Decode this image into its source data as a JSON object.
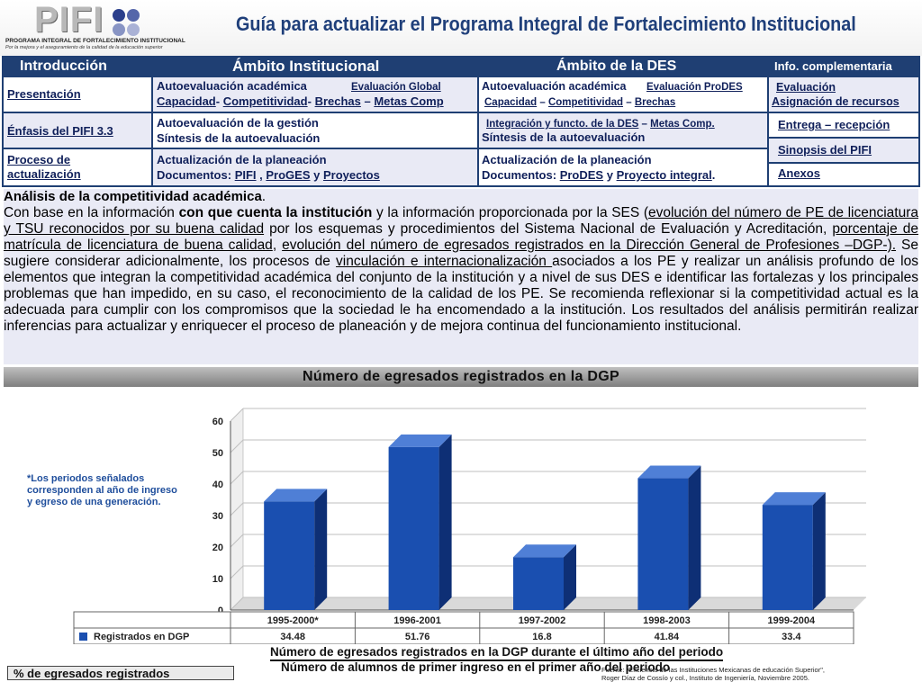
{
  "header": {
    "logo_text": "PIFI",
    "logo_subtitle": "PROGRAMA INTEGRAL DE FORTALECIMIENTO INSTITUCIONAL",
    "logo_tagline": "Por la mejora y el aseguramiento de la calidad de la educación superior",
    "title": "Guía para actualizar el Programa Integral de Fortalecimiento Institucional"
  },
  "nav": {
    "col1_header": "Introducción",
    "col2_header": "Ámbito Institucional",
    "col3_header": "Ámbito de la DES",
    "col4_header": "Info. complementaria",
    "col1": {
      "presentacion": "Presentación",
      "enfasis": "Énfasis del PIFI 3.3",
      "proceso": "Proceso de actualización"
    },
    "col2": {
      "autoeval_acad": "Autoevaluación académica",
      "eval_global": "Evaluación Global",
      "capacidad": "Capacidad",
      "competitividad": "Competitividad",
      "brechas": "Brechas",
      "metas": "Metas Comp",
      "autoeval_gestion": "Autoevaluación de la gestión",
      "sintesis": "Síntesis de la autoevaluación",
      "actualizacion": "Actualización de la planeación",
      "documentos": "Documentos:",
      "pifi": "PIFI",
      "proges": "ProGES",
      "y": "y",
      "proyectos": "Proyectos"
    },
    "col3": {
      "autoeval_acad": "Autoevaluación académica",
      "eval_prodes": "Evaluación ProDES",
      "capacidad": "Capacidad",
      "competitividad": "Competitividad",
      "brechas": "Brechas",
      "integracion": "Integración y functo. de la DES",
      "metas": "Metas Comp.",
      "sintesis": "Síntesis de la autoevaluación",
      "actualizacion": "Actualización de la planeación",
      "documentos": "Documentos:",
      "prodes": "ProDES",
      "y": "y",
      "proyecto_integral": "Proyecto integral"
    },
    "col4": {
      "evaluacion": "Evaluación",
      "asignacion": "Asignación de recursos",
      "entrega": "Entrega – recepción",
      "sinopsis": "Sinopsis del PIFI",
      "anexos": "Anexos"
    }
  },
  "body": {
    "heading": "Análisis de la competitividad académica",
    "p1": "Con base en la información",
    "p2": "con que cuenta la institución",
    "p3": "y la información proporcionada por la SES (",
    "l1": "evolución del número de PE de licenciatura y TSU reconocidos por su buena calidad",
    "p4": " por los esquemas y procedimientos del Sistema Nacional de Evaluación y Acreditación, ",
    "l2": "porcentaje de matrícula de licenciatura de buena calidad",
    "p5": ", ",
    "l3": "evolución del número de egresados registrados en la Dirección General de Profesiones –DGP-).",
    "p6": " Se sugiere considerar adicionalmente, los procesos de ",
    "l4": "vinculación e internacionalización ",
    "p7": "asociados a los PE y realizar un análisis profundo de los elementos que integran la competitividad académica del conjunto de la institución y a nivel de sus DES e identificar las fortalezas y los principales problemas que han impedido, en su caso, el reconocimiento de la calidad de los PE. Se recomienda reflexionar si la competitividad actual es la adecuada para cumplir con los compromisos que la sociedad le ha encomendado a la institución. Los resultados del análisis permitirán realizar inferencias para actualizar y enriquecer el proceso de planeación y de mejora continua del funcionamiento institucional."
  },
  "chart_data": {
    "type": "bar",
    "title": "Número de egresados registrados en la DGP",
    "categories": [
      "1995-2000*",
      "1996-2001",
      "1997-2002",
      "1998-2003",
      "1999-2004"
    ],
    "series": [
      {
        "name": "Registrados en DGP",
        "values": [
          34.48,
          51.76,
          16.8,
          41.84,
          33.4
        ]
      }
    ],
    "value_labels": [
      "34.48",
      "51.76",
      "16.8",
      "41.84",
      "33.4"
    ],
    "yticks": [
      "0",
      "10",
      "20",
      "30",
      "40",
      "50",
      "60"
    ],
    "ylim": [
      0,
      60
    ],
    "grid": true,
    "legend": "bottom-left table",
    "bar_color": "#1a4fb0"
  },
  "notes": {
    "side_note": "*Los periodos señalados corresponden al año de ingreso y egreso de una generación.",
    "pct_label": "% de egresados registrados",
    "formula_numerator": "Número de egresados registrados en la DGP durante el último año del periodo",
    "formula_denominator": "Número de alumnos de primer ingreso en el primer año del periodo",
    "source_line1": "Fuente: \"Eficiencia de las Instituciones Mexicanas de educación Superior\",",
    "source_line2": "Roger Díaz de Cossío y col., Instituto de Ingeniería, Noviembre 2005."
  }
}
